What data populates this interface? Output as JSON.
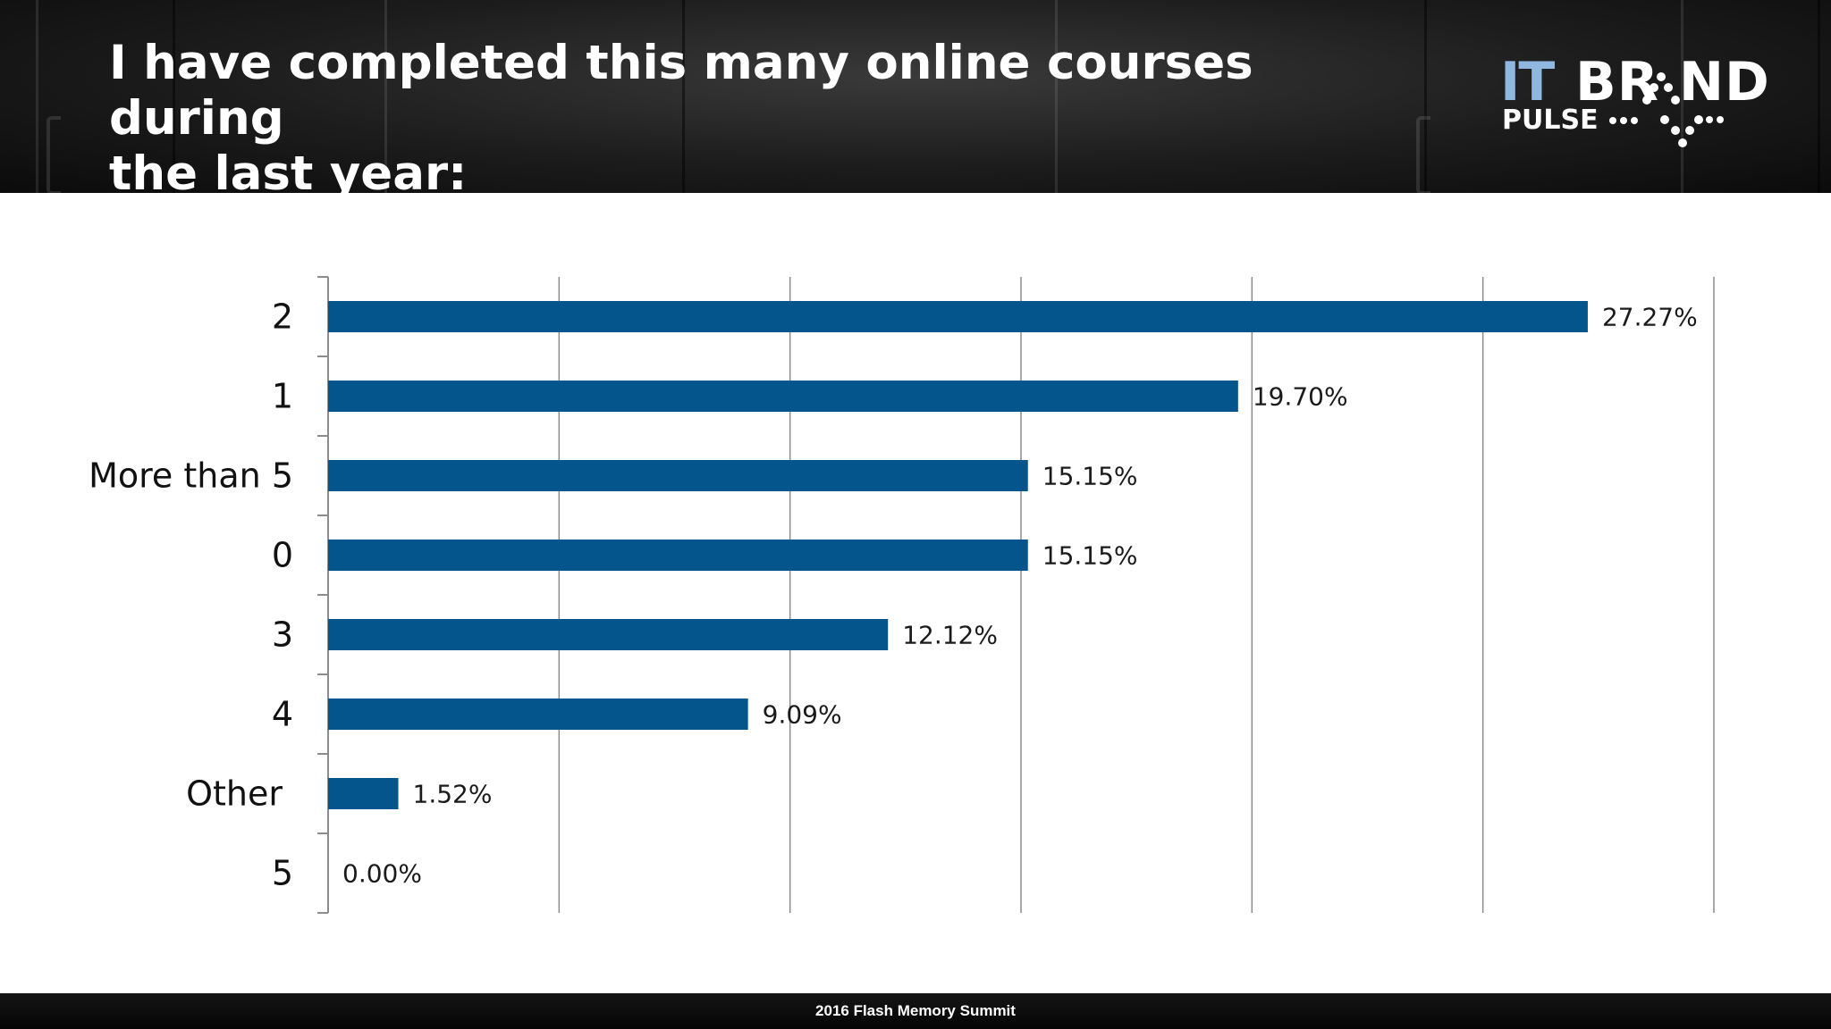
{
  "slide": {
    "title_line1": "I have completed this many online courses during",
    "title_line2": "the last year:",
    "footer": "2016 Flash Memory Summit"
  },
  "logo": {
    "it": "IT",
    "brand": "BR ND",
    "pulse": "PULSE"
  },
  "colors": {
    "bar": "#03558c",
    "gridline": "#8c8c8c",
    "header_bg": "#1a1a1a"
  },
  "chart_data": {
    "type": "bar",
    "orientation": "horizontal",
    "categories": [
      "2",
      "1",
      "More than 5",
      "0",
      "3",
      "4",
      "Other",
      "5"
    ],
    "values": [
      27.27,
      19.7,
      15.15,
      15.15,
      12.12,
      9.09,
      1.52,
      0.0
    ],
    "value_labels": [
      "27.27%",
      "19.70%",
      "15.15%",
      "15.15%",
      "12.12%",
      "9.09%",
      "1.52%",
      "0.00%"
    ],
    "xlim": [
      0,
      30
    ],
    "grid": true,
    "grid_step": 5,
    "x_tick_labels_shown": false
  }
}
